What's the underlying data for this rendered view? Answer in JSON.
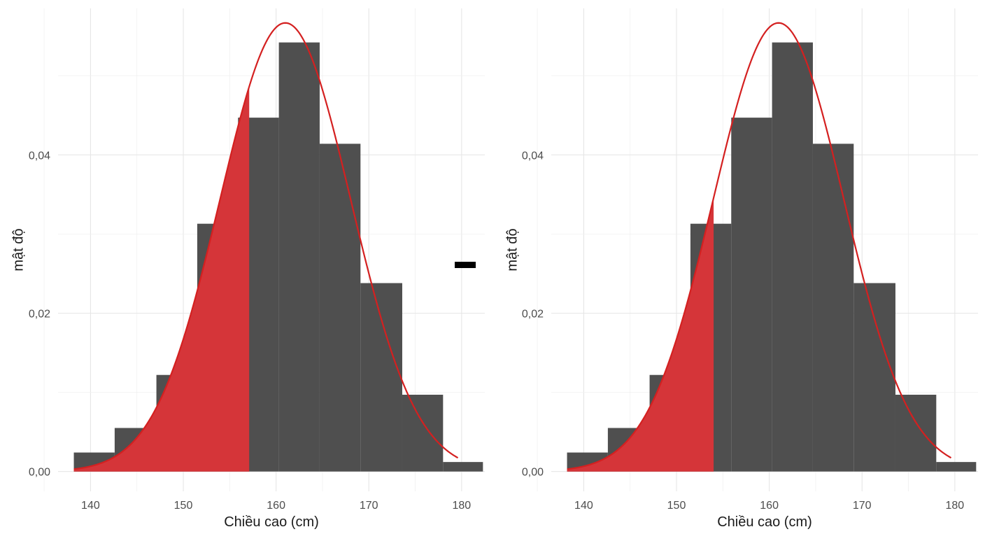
{
  "separator_symbol": "−",
  "chart_data": [
    {
      "type": "bar",
      "xlabel": "Chiều cao (cm)",
      "ylabel": "mật độ",
      "xlim": [
        136.5,
        182.5
      ],
      "ylim": [
        -0.0025,
        0.0585
      ],
      "x_ticks": [
        140,
        150,
        160,
        170,
        180
      ],
      "x_tick_labels": [
        "140",
        "150",
        "160",
        "170",
        "180"
      ],
      "y_ticks": [
        0,
        0.02,
        0.04
      ],
      "y_tick_labels": [
        "0,00",
        "0,02",
        "0,04"
      ],
      "grid": true,
      "bins": [
        {
          "x0": 138.2,
          "x1": 142.6,
          "density": 0.0024
        },
        {
          "x0": 142.6,
          "x1": 147.1,
          "density": 0.0055
        },
        {
          "x0": 147.1,
          "x1": 151.5,
          "density": 0.0122
        },
        {
          "x0": 151.5,
          "x1": 155.9,
          "density": 0.0313
        },
        {
          "x0": 155.9,
          "x1": 160.3,
          "density": 0.0447
        },
        {
          "x0": 160.3,
          "x1": 164.7,
          "density": 0.0542
        },
        {
          "x0": 164.7,
          "x1": 169.1,
          "density": 0.0414
        },
        {
          "x0": 169.1,
          "x1": 173.6,
          "density": 0.0238
        },
        {
          "x0": 173.6,
          "x1": 178.0,
          "density": 0.0097
        },
        {
          "x0": 178.0,
          "x1": 182.3,
          "density": 0.0012
        }
      ],
      "normal_curve": {
        "mean": 161.0,
        "sd": 7.04,
        "x_range": [
          138.2,
          179.6
        ],
        "color": "#d42020"
      },
      "shaded_upper_bound": 157.1,
      "shade_color": "#ff3b3b"
    },
    {
      "type": "bar",
      "xlabel": "Chiều cao (cm)",
      "ylabel": "mật độ",
      "xlim": [
        136.5,
        182.5
      ],
      "ylim": [
        -0.0025,
        0.0585
      ],
      "x_ticks": [
        140,
        150,
        160,
        170,
        180
      ],
      "x_tick_labels": [
        "140",
        "150",
        "160",
        "170",
        "180"
      ],
      "y_ticks": [
        0,
        0.02,
        0.04
      ],
      "y_tick_labels": [
        "0,00",
        "0,02",
        "0,04"
      ],
      "grid": true,
      "bins": [
        {
          "x0": 138.2,
          "x1": 142.6,
          "density": 0.0024
        },
        {
          "x0": 142.6,
          "x1": 147.1,
          "density": 0.0055
        },
        {
          "x0": 147.1,
          "x1": 151.5,
          "density": 0.0122
        },
        {
          "x0": 151.5,
          "x1": 155.9,
          "density": 0.0313
        },
        {
          "x0": 155.9,
          "x1": 160.3,
          "density": 0.0447
        },
        {
          "x0": 160.3,
          "x1": 164.7,
          "density": 0.0542
        },
        {
          "x0": 164.7,
          "x1": 169.1,
          "density": 0.0414
        },
        {
          "x0": 169.1,
          "x1": 173.6,
          "density": 0.0238
        },
        {
          "x0": 173.6,
          "x1": 178.0,
          "density": 0.0097
        },
        {
          "x0": 178.0,
          "x1": 182.3,
          "density": 0.0012
        }
      ],
      "normal_curve": {
        "mean": 161.0,
        "sd": 7.04,
        "x_range": [
          138.2,
          179.6
        ],
        "color": "#d42020"
      },
      "shaded_upper_bound": 154.0,
      "shade_color": "#ff3b3b"
    }
  ]
}
